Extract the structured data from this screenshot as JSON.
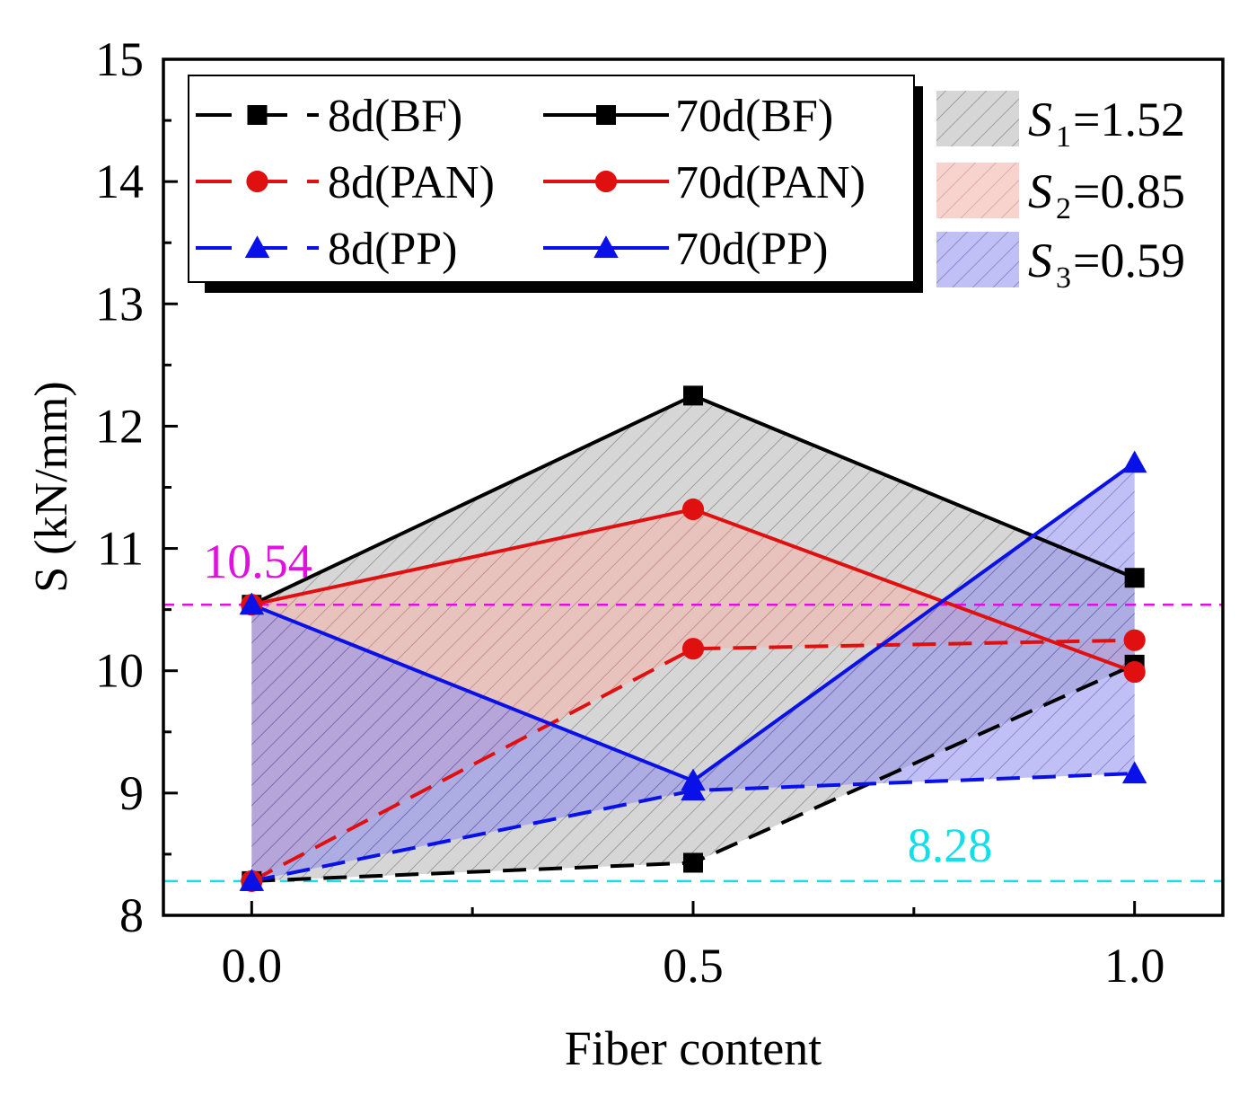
{
  "chart_data": {
    "type": "line",
    "xlabel": "Fiber content",
    "ylabel": "S (kN/mm)",
    "xlim": [
      -0.1,
      1.1
    ],
    "ylim": [
      8,
      15
    ],
    "x_ticks": [
      0.0,
      0.5,
      1.0
    ],
    "x_tick_labels": [
      "0.0",
      "0.5",
      "1.0"
    ],
    "y_ticks": [
      8,
      9,
      10,
      11,
      12,
      13,
      14,
      15
    ],
    "y_tick_labels": [
      "8",
      "9",
      "10",
      "11",
      "12",
      "13",
      "14",
      "15"
    ],
    "x": [
      0.0,
      0.5,
      1.0
    ],
    "series": [
      {
        "name": "8d(BF)",
        "age": "8d",
        "fiber": "BF",
        "values": [
          8.28,
          8.43,
          10.05
        ],
        "color": "#000000",
        "marker": "square",
        "dashed": true
      },
      {
        "name": "70d(BF)",
        "age": "70d",
        "fiber": "BF",
        "values": [
          10.54,
          12.25,
          10.76
        ],
        "color": "#000000",
        "marker": "square",
        "dashed": false
      },
      {
        "name": "8d(PAN)",
        "age": "8d",
        "fiber": "PAN",
        "values": [
          8.28,
          10.18,
          10.25
        ],
        "color": "#e01010",
        "marker": "circle",
        "dashed": true
      },
      {
        "name": "70d(PAN)",
        "age": "70d",
        "fiber": "PAN",
        "values": [
          10.54,
          11.32,
          9.99
        ],
        "color": "#e01010",
        "marker": "circle",
        "dashed": false
      },
      {
        "name": "8d(PP)",
        "age": "8d",
        "fiber": "PP",
        "values": [
          8.28,
          9.02,
          9.16
        ],
        "color": "#0a10e8",
        "marker": "triangle",
        "dashed": true
      },
      {
        "name": "70d(PP)",
        "age": "70d",
        "fiber": "PP",
        "values": [
          10.54,
          9.1,
          11.7
        ],
        "color": "#0a10e8",
        "marker": "triangle",
        "dashed": false
      }
    ],
    "legend_order": [
      "8d(BF)",
      "70d(BF)",
      "8d(PAN)",
      "70d(PAN)",
      "8d(PP)",
      "70d(PP)"
    ],
    "legend_position": "top-left",
    "area_fill_colors": [
      "#c8c8c8",
      "#f3b6ae",
      "#8c8cef"
    ],
    "areas": [
      {
        "label_symbol": "S",
        "label_subscript": "1",
        "label_value": "=1.52",
        "fiber": "BF"
      },
      {
        "label_symbol": "S",
        "label_subscript": "2",
        "label_value": "=0.85",
        "fiber": "PAN"
      },
      {
        "label_symbol": "S",
        "label_subscript": "3",
        "label_value": "=0.59",
        "fiber": "PP"
      }
    ],
    "area_legend_position": "top-right",
    "reference_lines": [
      {
        "value": 10.54,
        "label": "10.54",
        "color": "#e010e0"
      },
      {
        "value": 8.28,
        "label": "8.28",
        "color": "#10e0e8"
      }
    ]
  }
}
